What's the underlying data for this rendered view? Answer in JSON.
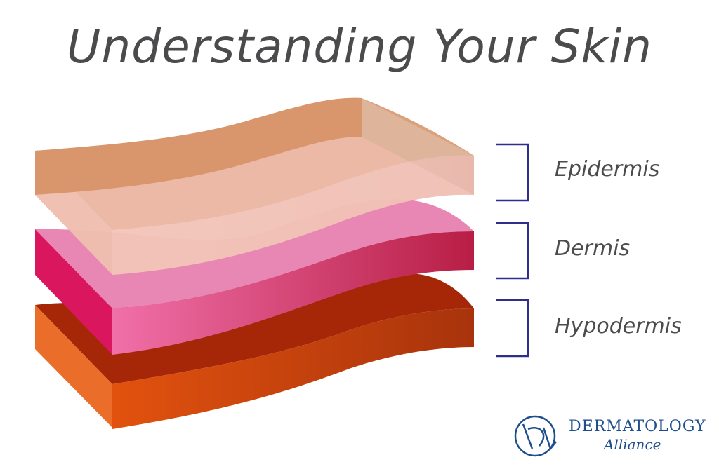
{
  "title": "Understanding Your Skin",
  "layers": [
    {
      "label": "Epidermis"
    },
    {
      "label": "Dermis"
    },
    {
      "label": "Hypodermis"
    }
  ],
  "logo": {
    "line1": "DERMATOLOGY",
    "line2": "Alliance"
  },
  "colors": {
    "title": "#4b4b4d",
    "bracket": "#2e2f8a",
    "logo": "#1f4e8c",
    "epidermis": "#d9936a",
    "dermis": "#e0457e",
    "hypodermis": "#d9430b"
  }
}
